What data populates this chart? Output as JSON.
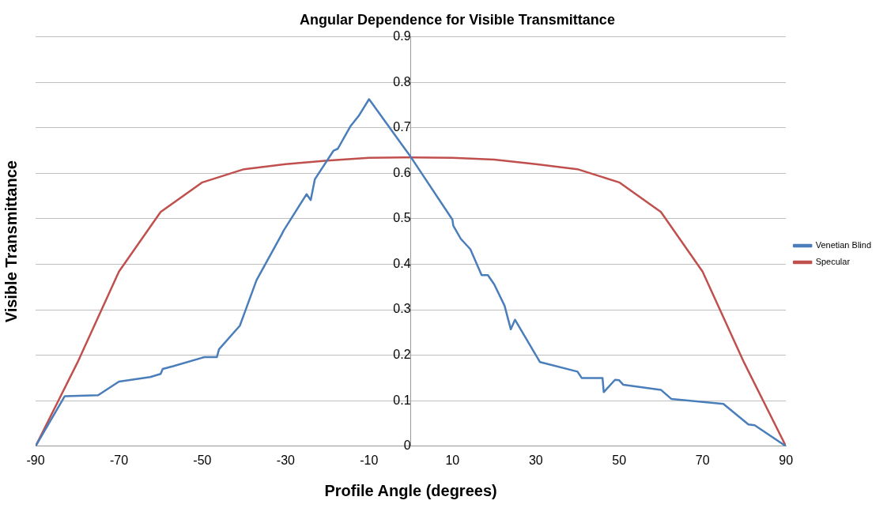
{
  "chart_data": {
    "type": "line",
    "title": "Angular Dependence for Visible Transmittance",
    "xlabel": "Profile Angle (degrees)",
    "ylabel": "Visible Transmittance",
    "xlim": [
      -90,
      90
    ],
    "xticks": [
      -90,
      -70,
      -50,
      -30,
      -10,
      10,
      30,
      50,
      70,
      90
    ],
    "ylim": [
      0,
      0.9
    ],
    "yticks": [
      0,
      0.1,
      0.2,
      0.3,
      0.4,
      0.5,
      0.6,
      0.7,
      0.8,
      0.9
    ],
    "grid": "y",
    "legend": "right",
    "marker": "none",
    "line_style": "solid",
    "series": [
      {
        "name": "Venetian Blind",
        "color": "#4a7ebb",
        "x": [
          -90,
          -83,
          -75,
          -70,
          -62.5,
          -60,
          -59.5,
          -57,
          -49.5,
          -46.5,
          -46,
          -41,
          -40,
          -37,
          -31,
          -30.5,
          -25,
          -24,
          -23,
          -18.5,
          -17.5,
          -14.5,
          -12.5,
          -10,
          0,
          10,
          10.2,
          12,
          14.3,
          17,
          18.5,
          20,
          22.5,
          24,
          25,
          31,
          40,
          41,
          46,
          46.3,
          49,
          50,
          51,
          60,
          62.5,
          75,
          81,
          82.5,
          90
        ],
        "values": [
          0,
          0.11,
          0.112,
          0.142,
          0.152,
          0.159,
          0.17,
          0.176,
          0.196,
          0.196,
          0.213,
          0.265,
          0.29,
          0.365,
          0.465,
          0.474,
          0.554,
          0.541,
          0.587,
          0.65,
          0.654,
          0.703,
          0.726,
          0.763,
          0.636,
          0.498,
          0.485,
          0.456,
          0.433,
          0.376,
          0.376,
          0.356,
          0.309,
          0.257,
          0.278,
          0.185,
          0.164,
          0.15,
          0.15,
          0.119,
          0.146,
          0.145,
          0.135,
          0.124,
          0.104,
          0.093,
          0.048,
          0.046,
          0
        ]
      },
      {
        "name": "Specular",
        "color": "#c0504d",
        "x": [
          -90,
          -80,
          -70,
          -60,
          -50,
          -40,
          -30,
          -20,
          -10,
          0,
          10,
          20,
          30,
          40,
          50,
          60,
          70,
          80,
          90
        ],
        "values": [
          0,
          0.183,
          0.384,
          0.515,
          0.58,
          0.609,
          0.62,
          0.628,
          0.634,
          0.635,
          0.634,
          0.63,
          0.62,
          0.609,
          0.58,
          0.515,
          0.384,
          0.183,
          0
        ]
      }
    ]
  }
}
